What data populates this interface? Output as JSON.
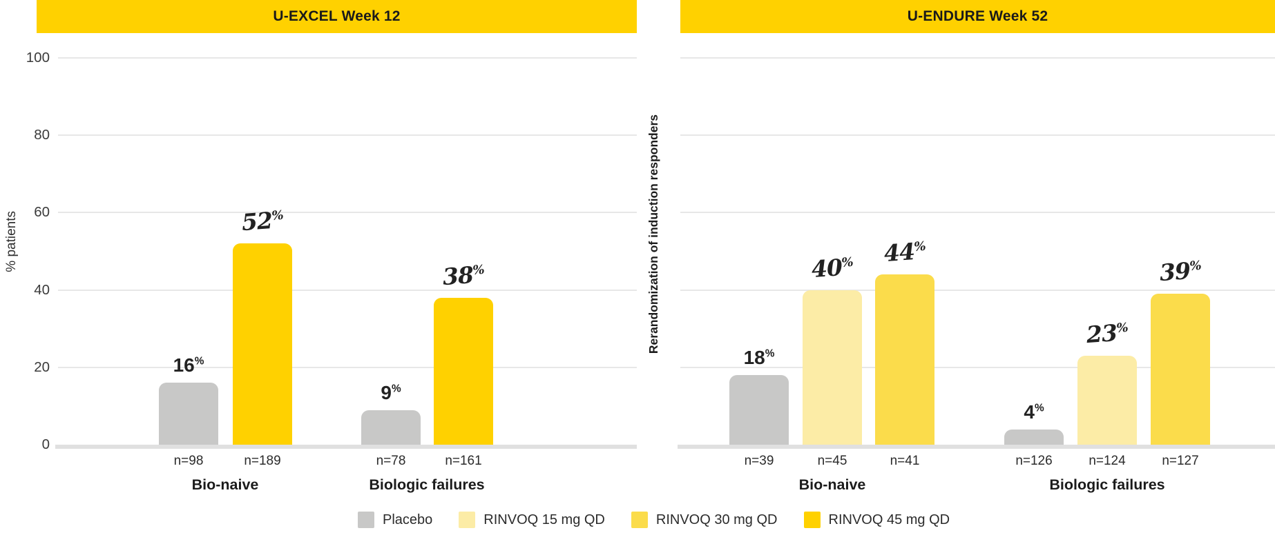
{
  "chart_data": [
    {
      "type": "bar",
      "panel": "U-EXCEL Week 12",
      "ylabel": "% patients",
      "ylim": [
        0,
        100
      ],
      "yticks": [
        0,
        20,
        40,
        60,
        80,
        100
      ],
      "grid": true,
      "groups": [
        {
          "label": "Bio-naive",
          "bars": [
            {
              "series": "Placebo",
              "value": 16,
              "value_label": "16",
              "n": "n=98"
            },
            {
              "series": "RINVOQ 45 mg QD",
              "value": 52,
              "value_label": "52",
              "n": "n=189"
            }
          ]
        },
        {
          "label": "Biologic failures",
          "bars": [
            {
              "series": "Placebo",
              "value": 9,
              "value_label": "9",
              "n": "n=78"
            },
            {
              "series": "RINVOQ 45 mg QD",
              "value": 38,
              "value_label": "38",
              "n": "n=161"
            }
          ]
        }
      ]
    },
    {
      "type": "bar",
      "panel": "U-ENDURE Week 52",
      "ylabel": "Rerandomization of induction responders",
      "ylim": [
        0,
        100
      ],
      "yticks": [
        0,
        20,
        40,
        60,
        80,
        100
      ],
      "grid": true,
      "groups": [
        {
          "label": "Bio-naive",
          "bars": [
            {
              "series": "Placebo",
              "value": 18,
              "value_label": "18",
              "n": "n=39"
            },
            {
              "series": "RINVOQ 15 mg QD",
              "value": 40,
              "value_label": "40",
              "n": "n=45"
            },
            {
              "series": "RINVOQ 30 mg QD",
              "value": 44,
              "value_label": "44",
              "n": "n=41"
            }
          ]
        },
        {
          "label": "Biologic failures",
          "bars": [
            {
              "series": "Placebo",
              "value": 4,
              "value_label": "4",
              "n": "n=126"
            },
            {
              "series": "RINVOQ 15 mg QD",
              "value": 23,
              "value_label": "23",
              "n": "n=124"
            },
            {
              "series": "RINVOQ 30 mg QD",
              "value": 39,
              "value_label": "39",
              "n": "n=127"
            }
          ]
        }
      ]
    }
  ],
  "legend": {
    "position": "bottom",
    "items": [
      {
        "label": "Placebo",
        "color": "#C8C8C7"
      },
      {
        "label": "RINVOQ 15 mg QD",
        "color": "#FCECA6"
      },
      {
        "label": "RINVOQ 30 mg QD",
        "color": "#FBDC4B"
      },
      {
        "label": "RINVOQ 45 mg QD",
        "color": "#FFD100"
      }
    ]
  },
  "colors": {
    "banner": "#FFD100",
    "gridline": "#E7E7E7",
    "baseline": "#E0E0E0",
    "percent_sign": "%"
  }
}
